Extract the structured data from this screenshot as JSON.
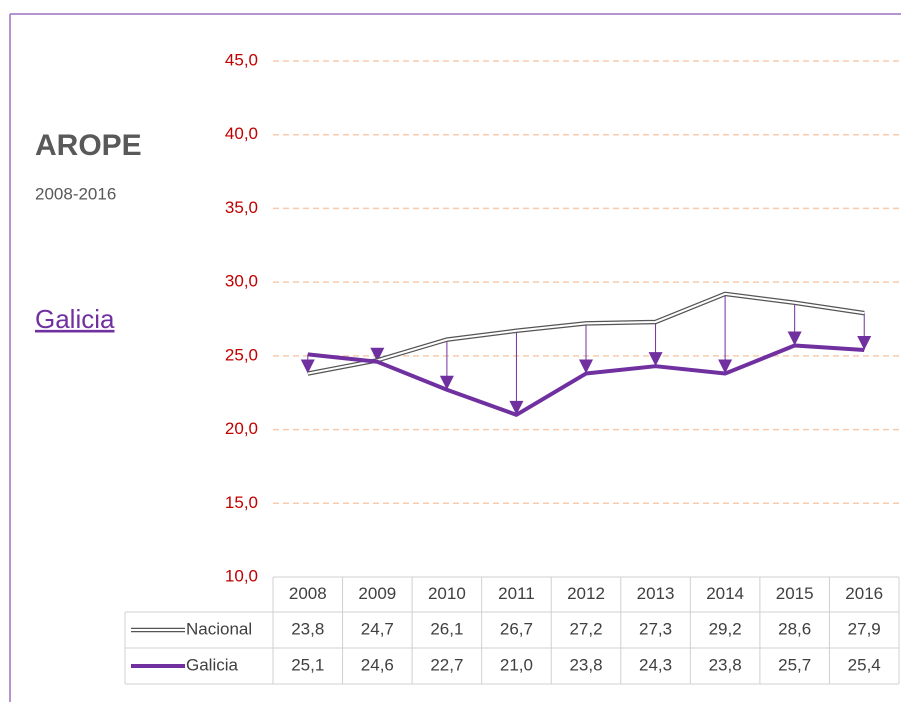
{
  "title": "AROPE",
  "subtitle": "2008-2016",
  "region_link": "Galicia",
  "chart_data": {
    "type": "line",
    "categories": [
      "2008",
      "2009",
      "2010",
      "2011",
      "2012",
      "2013",
      "2014",
      "2015",
      "2016"
    ],
    "series": [
      {
        "name": "Nacional",
        "color": "#555555",
        "values": [
          23.8,
          24.7,
          26.1,
          26.7,
          27.2,
          27.3,
          29.2,
          28.6,
          27.9
        ],
        "value_labels": [
          "23,8",
          "24,7",
          "26,1",
          "26,7",
          "27,2",
          "27,3",
          "29,2",
          "28,6",
          "27,9"
        ]
      },
      {
        "name": "Galicia",
        "color": "#7030a0",
        "values": [
          25.1,
          24.6,
          22.7,
          21.0,
          23.8,
          24.3,
          23.8,
          25.7,
          25.4
        ],
        "value_labels": [
          "25,1",
          "24,6",
          "22,7",
          "21,0",
          "23,8",
          "24,3",
          "23,8",
          "25,7",
          "25,4"
        ]
      }
    ],
    "ylim": [
      10,
      45
    ],
    "yticks": [
      {
        "value": 10,
        "label": "10,0"
      },
      {
        "value": 15,
        "label": "15,0"
      },
      {
        "value": 20,
        "label": "20,0"
      },
      {
        "value": 25,
        "label": "25,0"
      },
      {
        "value": 30,
        "label": "30,0"
      },
      {
        "value": 35,
        "label": "35,0"
      },
      {
        "value": 40,
        "label": "40,0"
      },
      {
        "value": 45,
        "label": "45,0"
      }
    ],
    "grid": true,
    "tick_color": "#c00000",
    "grid_color": "#f8cbad",
    "data_table": true
  }
}
